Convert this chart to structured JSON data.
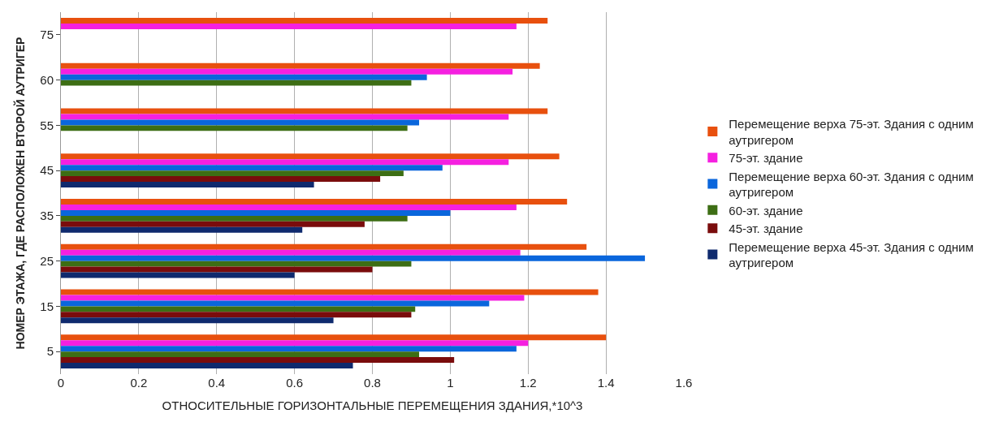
{
  "chart_data": {
    "type": "bar",
    "orientation": "horizontal",
    "xlabel": "ОТНОСИТЕЛЬНЫЕ ГОРИЗОНТАЛЬНЫЕ ПЕРЕМЕЩЕНИЯ ЗДАНИЯ,*10^3",
    "ylabel": "НОМЕР ЭТАЖА, ГДЕ РАСПОЛОЖЕН ВТОРОЙ АУТРИГЕР",
    "categories": [
      "75",
      "60",
      "55",
      "45",
      "35",
      "25",
      "15",
      "5"
    ],
    "series": [
      {
        "name": "Перемещение верха 75-эт. Здания с одним аутригером",
        "color": "#e8500e",
        "values": [
          1.25,
          1.23,
          1.25,
          1.28,
          1.3,
          1.35,
          1.38,
          1.4
        ]
      },
      {
        "name": "75-эт. здание",
        "color": "#f520e0",
        "values": [
          1.17,
          1.16,
          1.15,
          1.15,
          1.17,
          1.18,
          1.19,
          1.2
        ]
      },
      {
        "name": "Перемещение верха 60-эт. Здания с одним аутригером",
        "color": "#0a66dc",
        "values": [
          null,
          0.94,
          0.92,
          0.98,
          1.0,
          1.5,
          1.1,
          1.17
        ]
      },
      {
        "name": "60-эт. здание",
        "color": "#3d6e14",
        "values": [
          null,
          0.9,
          0.89,
          0.88,
          0.89,
          0.9,
          0.91,
          0.92
        ]
      },
      {
        "name": "45-эт. здание",
        "color": "#7a0c0c",
        "values": [
          null,
          null,
          null,
          0.82,
          0.78,
          0.8,
          0.9,
          1.01
        ]
      },
      {
        "name": "Перемещение верха 45-эт. Здания с одним аутригером",
        "color": "#0f2a6e",
        "values": [
          null,
          null,
          null,
          0.65,
          0.62,
          0.6,
          0.7,
          0.75
        ]
      }
    ],
    "xlim": [
      0,
      1.6
    ],
    "xticks": [
      0,
      0.2,
      0.4,
      0.6,
      0.8,
      1,
      1.2,
      1.4,
      1.6
    ],
    "grid": "x",
    "legend": "right"
  }
}
